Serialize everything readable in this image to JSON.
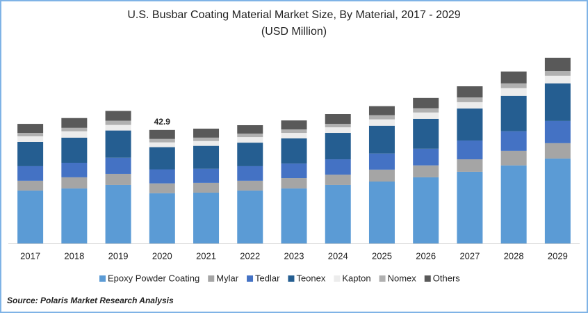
{
  "chart_data": {
    "type": "stacked_bar",
    "title": "U.S. Busbar Coating Material Market Size, By Material, 2017 - 2029",
    "subtitle": "(USD Million)",
    "categories": [
      "2017",
      "2018",
      "2019",
      "2020",
      "2021",
      "2022",
      "2023",
      "2024",
      "2025",
      "2026",
      "2027",
      "2028",
      "2029"
    ],
    "series": [
      {
        "name": "Epoxy Powder Coating",
        "color": "#5b9bd5",
        "values": [
          20.0,
          20.8,
          22.1,
          19.0,
          19.2,
          20.0,
          20.8,
          22.1,
          23.4,
          25.0,
          27.1,
          29.5,
          32.1
        ]
      },
      {
        "name": "Mylar",
        "color": "#a5a5a5",
        "values": [
          3.7,
          4.2,
          4.2,
          3.7,
          3.7,
          3.7,
          3.9,
          3.9,
          4.5,
          4.5,
          4.7,
          5.5,
          5.8
        ]
      },
      {
        "name": "Tedlar",
        "color": "#4472c4",
        "values": [
          5.5,
          5.5,
          6.1,
          5.3,
          5.3,
          5.5,
          5.5,
          5.8,
          6.1,
          6.3,
          7.1,
          7.4,
          8.4
        ]
      },
      {
        "name": "Teonex",
        "color": "#255e91",
        "values": [
          9.2,
          9.5,
          10.3,
          8.4,
          8.7,
          8.9,
          9.5,
          10.0,
          10.5,
          11.3,
          12.1,
          13.4,
          14.2
        ]
      },
      {
        "name": "Kapton",
        "color": "#ececec",
        "values": [
          2.1,
          2.4,
          2.1,
          1.8,
          1.8,
          2.1,
          2.1,
          2.1,
          2.4,
          2.4,
          2.4,
          2.9,
          2.9
        ]
      },
      {
        "name": "Nomex",
        "color": "#b0b0b0",
        "values": [
          1.3,
          1.3,
          1.6,
          1.3,
          1.3,
          1.3,
          1.3,
          1.3,
          1.6,
          1.6,
          1.8,
          1.8,
          1.8
        ]
      },
      {
        "name": "Others",
        "color": "#595959",
        "values": [
          3.4,
          3.7,
          3.7,
          3.4,
          3.4,
          3.2,
          3.4,
          3.7,
          3.4,
          3.9,
          4.2,
          4.5,
          5.0
        ]
      }
    ],
    "annotations": [
      {
        "x": "2020",
        "value": 42.9
      }
    ],
    "legend": "bottom",
    "source": "Source: Polaris  Market Research Analysis"
  }
}
